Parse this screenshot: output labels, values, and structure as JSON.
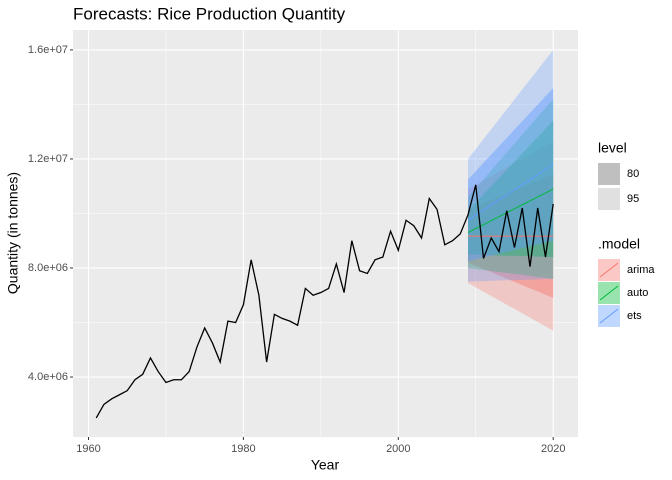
{
  "chart_data": {
    "type": "forecast",
    "title": "Forecasts: Rice Production Quantity",
    "x_label": "Year",
    "y_label": "Quantity (in tonnes)",
    "xlim": [
      1958,
      2023.2
    ],
    "xticks": [
      1960,
      1980,
      2000,
      2020
    ],
    "ylim": [
      1800000.0,
      16730000.0
    ],
    "yticks": [
      {
        "value": 4000000.0,
        "label": "4.0e+06"
      },
      {
        "value": 8000000.0,
        "label": "8.0e+06"
      },
      {
        "value": 12000000.0,
        "label": "1.2e+07"
      },
      {
        "value": 16000000.0,
        "label": "1.6e+07"
      }
    ],
    "grid": true,
    "x": [
      1961,
      1962,
      1963,
      1964,
      1965,
      1966,
      1967,
      1968,
      1969,
      1970,
      1971,
      1972,
      1973,
      1974,
      1975,
      1976,
      1977,
      1978,
      1979,
      1980,
      1981,
      1982,
      1983,
      1984,
      1985,
      1986,
      1987,
      1988,
      1989,
      1990,
      1991,
      1992,
      1993,
      1994,
      1995,
      1996,
      1997,
      1998,
      1999,
      2000,
      2001,
      2002,
      2003,
      2004,
      2005,
      2006,
      2007,
      2008,
      2009,
      2010,
      2011,
      2012,
      2013,
      2014,
      2015,
      2016,
      2017,
      2018,
      2019,
      2020
    ],
    "values": [
      2500000.0,
      3000000.0,
      3200000.0,
      3350000.0,
      3500000.0,
      3900000.0,
      4100000.0,
      4700000.0,
      4200000.0,
      3800000.0,
      3900000.0,
      3900000.0,
      4200000.0,
      5100000.0,
      5800000.0,
      5250000.0,
      4550000.0,
      6050000.0,
      6000000.0,
      6650000.0,
      8300000.0,
      7000000.0,
      4550000.0,
      6300000.0,
      6150000.0,
      6050000.0,
      5900000.0,
      7250000.0,
      7000000.0,
      7100000.0,
      7250000.0,
      8150000.0,
      7100000.0,
      9000000.0,
      7900000.0,
      7800000.0,
      8300000.0,
      8400000.0,
      9350000.0,
      8650000.0,
      9750000.0,
      9550000.0,
      9100000.0,
      10550000.0,
      10150000.0,
      8850000.0,
      9000000.0,
      9250000.0,
      9950000.0,
      11050000.0,
      8350000.0,
      9100000.0,
      8600000.0,
      10100000.0,
      8750000.0,
      10200000.0,
      8050000.0,
      10200000.0,
      8400000.0,
      10350000.0
    ],
    "color": "#000000",
    "forecast_x": [
      2009,
      2010,
      2011,
      2012,
      2013,
      2014,
      2015,
      2016,
      2017,
      2018,
      2019,
      2020
    ],
    "level_title": "level",
    "levels": [
      80,
      95
    ],
    "model_title": ".model",
    "models": [
      {
        "name": "arima",
        "color": "#F8766D",
        "values": [
          9170000.0,
          9170000.0,
          9170000.0,
          9170000.0,
          9170000.0,
          9170000.0,
          9170000.0,
          9170000.0,
          9170000.0,
          9170000.0,
          9170000.0,
          9170000.0
        ],
        "intervals": [
          {
            "lower": [
              8200000.0,
              8080000.0,
              7960000.0,
              7850000.0,
              7730000.0,
              7610000.0,
              7490000.0,
              7370000.0,
              7250000.0,
              7140000.0,
              7020000.0,
              6900000.0
            ],
            "upper": [
              10140000.0,
              10260000.0,
              10380000.0,
              10490000.0,
              10610000.0,
              10730000.0,
              10850000.0,
              10970000.0,
              11090000.0,
              11200000.0,
              11320000.0,
              11440000.0
            ]
          },
          {
            "lower": [
              7450000.0,
              7290000.0,
              7130000.0,
              6970000.0,
              6810000.0,
              6650000.0,
              6500000.0,
              6340000.0,
              6180000.0,
              6020000.0,
              5860000.0,
              5700000.0
            ],
            "upper": [
              10890000.0,
              11050000.0,
              11210000.0,
              11370000.0,
              11530000.0,
              11690000.0,
              11840000.0,
              12000000.0,
              12160000.0,
              12320000.0,
              12480000.0,
              12640000.0
            ]
          }
        ]
      },
      {
        "name": "auto",
        "color": "#00BA38",
        "values": [
          9300000.0,
          9450000.0,
          9590000.0,
          9740000.0,
          9880000.0,
          10030000.0,
          10170000.0,
          10320000.0,
          10460000.0,
          10610000.0,
          10750000.0,
          10900000.0
        ],
        "intervals": [
          {
            "lower": [
              8500000.0,
              8490000.0,
              8480000.0,
              8470000.0,
              8460000.0,
              8450000.0,
              8450000.0,
              8440000.0,
              8430000.0,
              8420000.0,
              8410000.0,
              8400000.0
            ],
            "upper": [
              10100000.0,
              10400000.0,
              10700000.0,
              11000000.0,
              11300000.0,
              11600000.0,
              11900000.0,
              12200000.0,
              12500000.0,
              12800000.0,
              13100000.0,
              13400000.0
            ]
          },
          {
            "lower": [
              8000000.0,
              7960000.0,
              7930000.0,
              7890000.0,
              7850000.0,
              7820000.0,
              7780000.0,
              7750000.0,
              7710000.0,
              7670000.0,
              7640000.0,
              7600000.0
            ],
            "upper": [
              10600000.0,
              10930000.0,
              11250000.0,
              11580000.0,
              11910000.0,
              12240000.0,
              12560000.0,
              12890000.0,
              13220000.0,
              13550000.0,
              13870000.0,
              14200000.0
            ]
          }
        ]
      },
      {
        "name": "ets",
        "color": "#619CFF",
        "values": [
          9750000.0,
          9940000.0,
          10120000.0,
          10310000.0,
          10500000.0,
          10680000.0,
          10870000.0,
          11050000.0,
          11240000.0,
          11430000.0,
          11610000.0,
          11800000.0
        ],
        "intervals": [
          {
            "lower": [
              8250000.0,
              8320000.0,
              8390000.0,
              8450000.0,
              8520000.0,
              8590000.0,
              8660000.0,
              8730000.0,
              8800000.0,
              8860000.0,
              8930000.0,
              9000000.0
            ],
            "upper": [
              11250000.0,
              11550000.0,
              11860000.0,
              12160000.0,
              12470000.0,
              12770000.0,
              13080000.0,
              13380000.0,
              13690000.0,
              13990000.0,
              14300000.0,
              14600000.0
            ]
          },
          {
            "lower": [
              7500000.0,
              7510000.0,
              7520000.0,
              7530000.0,
              7540000.0,
              7550000.0,
              7550000.0,
              7560000.0,
              7570000.0,
              7580000.0,
              7590000.0,
              7600000.0
            ],
            "upper": [
              12000000.0,
              12360000.0,
              12730000.0,
              13090000.0,
              13450000.0,
              13820000.0,
              14180000.0,
              14550000.0,
              14910000.0,
              15270000.0,
              15640000.0,
              16000000.0
            ]
          }
        ]
      }
    ]
  }
}
